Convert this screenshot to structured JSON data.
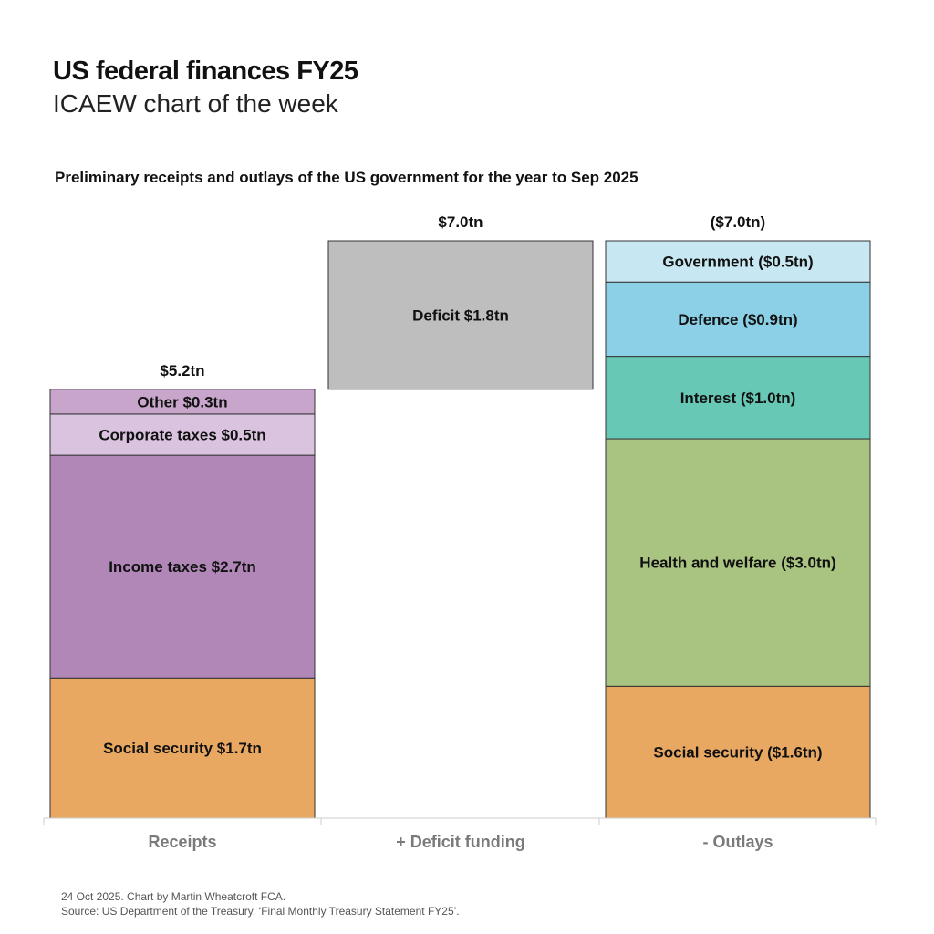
{
  "title": "US federal finances FY25",
  "subtitle": "ICAEW chart of the week",
  "footer": {
    "line1": "24 Oct 2025.   Chart by Martin Wheatcroft FCA.",
    "line2": "Source: US Department of the Treasury, ‘Final Monthly Treasury Statement FY25’."
  },
  "chart_data": {
    "type": "bar",
    "subtype": "stacked-waterfall",
    "title": "Preliminary receipts and outlays of the US government for the year to Sep 2025",
    "unit": "$tn",
    "categories": [
      "Receipts",
      "+ Deficit funding",
      "- Outlays"
    ],
    "totals": [
      "$5.2tn",
      "$7.0tn",
      "($7.0tn)"
    ],
    "ylim": [
      0,
      7.0
    ],
    "grid": false,
    "bars": [
      {
        "category": "Receipts",
        "segments": [
          {
            "label": "Social security $1.7tn",
            "value": 1.7,
            "color": "#E8A862"
          },
          {
            "label": "Income taxes $2.7tn",
            "value": 2.7,
            "color": "#B087B7"
          },
          {
            "label": "Corporate taxes $0.5tn",
            "value": 0.5,
            "color": "#D9C3DF"
          },
          {
            "label": "Other $0.3tn",
            "value": 0.3,
            "color": "#C8A6CC"
          }
        ]
      },
      {
        "category": "+ Deficit funding",
        "base": 5.2,
        "segments": [
          {
            "label": "Deficit $1.8tn",
            "value": 1.8,
            "color": "#BEBEBE"
          }
        ]
      },
      {
        "category": "- Outlays",
        "segments": [
          {
            "label": "Social security ($1.6tn)",
            "value": 1.6,
            "color": "#E8A862"
          },
          {
            "label": "Health and welfare ($3.0tn)",
            "value": 3.0,
            "color": "#A9C380"
          },
          {
            "label": "Interest ($1.0tn)",
            "value": 1.0,
            "color": "#67C8B5"
          },
          {
            "label": "Defence ($0.9tn)",
            "value": 0.9,
            "color": "#8BD0E6"
          },
          {
            "label": "Government ($0.5tn)",
            "value": 0.5,
            "color": "#C7E8F2"
          }
        ]
      }
    ]
  }
}
